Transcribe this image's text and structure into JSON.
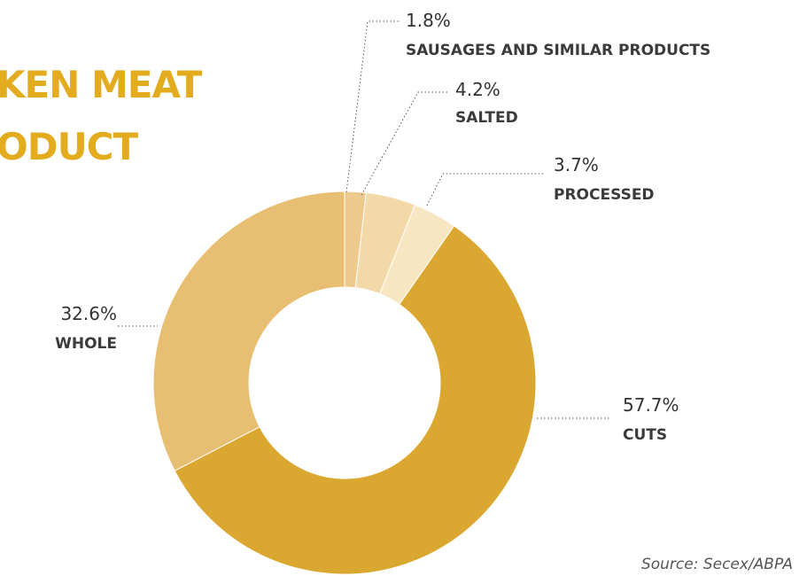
{
  "title_lines": [
    "KEN MEAT",
    "ODUCT"
  ],
  "source": "Source: Secex/ABPA",
  "chart_data": {
    "type": "pie",
    "variant": "donut",
    "slices": [
      {
        "label": "SAUSAGES AND SIMILAR PRODUCTS",
        "value": 1.8,
        "display": "1.8%",
        "color": "#edc98e"
      },
      {
        "label": "SALTED",
        "value": 4.2,
        "display": "4.2%",
        "color": "#f3d9a8"
      },
      {
        "label": "PROCESSED",
        "value": 3.7,
        "display": "3.7%",
        "color": "#f8e5c2"
      },
      {
        "label": "CUTS",
        "value": 57.7,
        "display": "57.7%",
        "color": "#daa830"
      },
      {
        "label": "WHOLE",
        "value": 32.6,
        "display": "32.6%",
        "color": "#e8bf72"
      }
    ]
  }
}
